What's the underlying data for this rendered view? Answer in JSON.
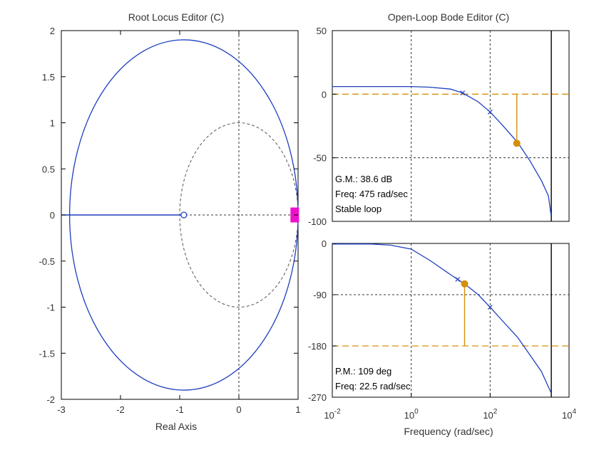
{
  "colors": {
    "locus": "#1f3fbf",
    "grid": "#333333",
    "margin": "#d4900a",
    "pole": "#ee11cc",
    "axis": "#000000"
  },
  "chart_data": [
    {
      "id": "root_locus",
      "type": "line",
      "title": "Root Locus Editor (C)",
      "xlabel": "Real Axis",
      "ylabel": "",
      "xlim": [
        -3,
        1
      ],
      "ylim": [
        -2,
        2
      ],
      "xticks": [
        "-3",
        "-2",
        "-1",
        "0",
        "1"
      ],
      "yticks": [
        "2",
        "1.5",
        "1",
        "0.5",
        "0",
        "-0.5",
        "-1",
        "-1.5",
        "-2"
      ],
      "grid": "dashed lines at x=0 and y=0",
      "unit_circle": {
        "center": [
          0,
          0
        ],
        "radius": 1,
        "style": "dashed"
      },
      "series": [
        {
          "name": "locus branch (ellipse)",
          "center": [
            -0.93,
            0
          ],
          "semi_axis_x": 1.93,
          "semi_axis_y": 1.9
        },
        {
          "name": "real-axis branch",
          "x": [
            -3.0,
            -0.93
          ],
          "y": [
            0,
            0
          ]
        }
      ],
      "zeros": [
        [
          -0.93,
          0
        ]
      ],
      "closed_loop_poles": [
        [
          0.95,
          0
        ]
      ]
    },
    {
      "id": "bode_magnitude",
      "type": "line",
      "title": "Open-Loop Bode Editor (C)",
      "xscale": "log",
      "xlim": [
        0.01,
        10000
      ],
      "ylim": [
        -100,
        50
      ],
      "yticks": [
        "50",
        "0",
        "-50",
        "-100"
      ],
      "series": [
        {
          "name": "magnitude (dB)",
          "x": [
            0.01,
            0.1,
            1,
            3,
            10,
            20,
            50,
            100,
            200,
            500,
            1000,
            2000,
            3000,
            3500
          ],
          "y": [
            6,
            6,
            6,
            5.5,
            4,
            1,
            -6,
            -14,
            -24,
            -38,
            -52,
            -68,
            -80,
            -95
          ]
        }
      ],
      "gain_margin": {
        "label": "G.M.: 38.6 dB",
        "freq_label": "Freq: 475 rad/sec",
        "status": "Stable loop",
        "freq": 475,
        "value": -38.6
      },
      "reference_line": 0,
      "markers_x": [
        20,
        100
      ]
    },
    {
      "id": "bode_phase",
      "type": "line",
      "xscale": "log",
      "xlabel": "Frequency (rad/sec)",
      "xlim": [
        0.01,
        10000
      ],
      "ylim": [
        -270,
        0
      ],
      "yticks": [
        "0",
        "-90",
        "-180",
        "-270"
      ],
      "xticks": [
        {
          "base": "10",
          "exp": "-2"
        },
        {
          "base": "10",
          "exp": "0"
        },
        {
          "base": "10",
          "exp": "2"
        },
        {
          "base": "10",
          "exp": "4"
        }
      ],
      "series": [
        {
          "name": "phase (deg)",
          "x": [
            0.01,
            0.1,
            0.3,
            1,
            3,
            10,
            22.5,
            50,
            100,
            200,
            500,
            1000,
            2000,
            3000,
            3500
          ],
          "y": [
            -1,
            -1,
            -3,
            -10,
            -30,
            -55,
            -71,
            -90,
            -112,
            -135,
            -165,
            -195,
            -225,
            -252,
            -262
          ]
        }
      ],
      "phase_margin": {
        "label": "P.M.: 109 deg",
        "freq_label": "Freq: 22.5 rad/sec",
        "freq": 22.5,
        "value": -71
      },
      "reference_line": -180,
      "markers_x": [
        15,
        100
      ]
    }
  ]
}
